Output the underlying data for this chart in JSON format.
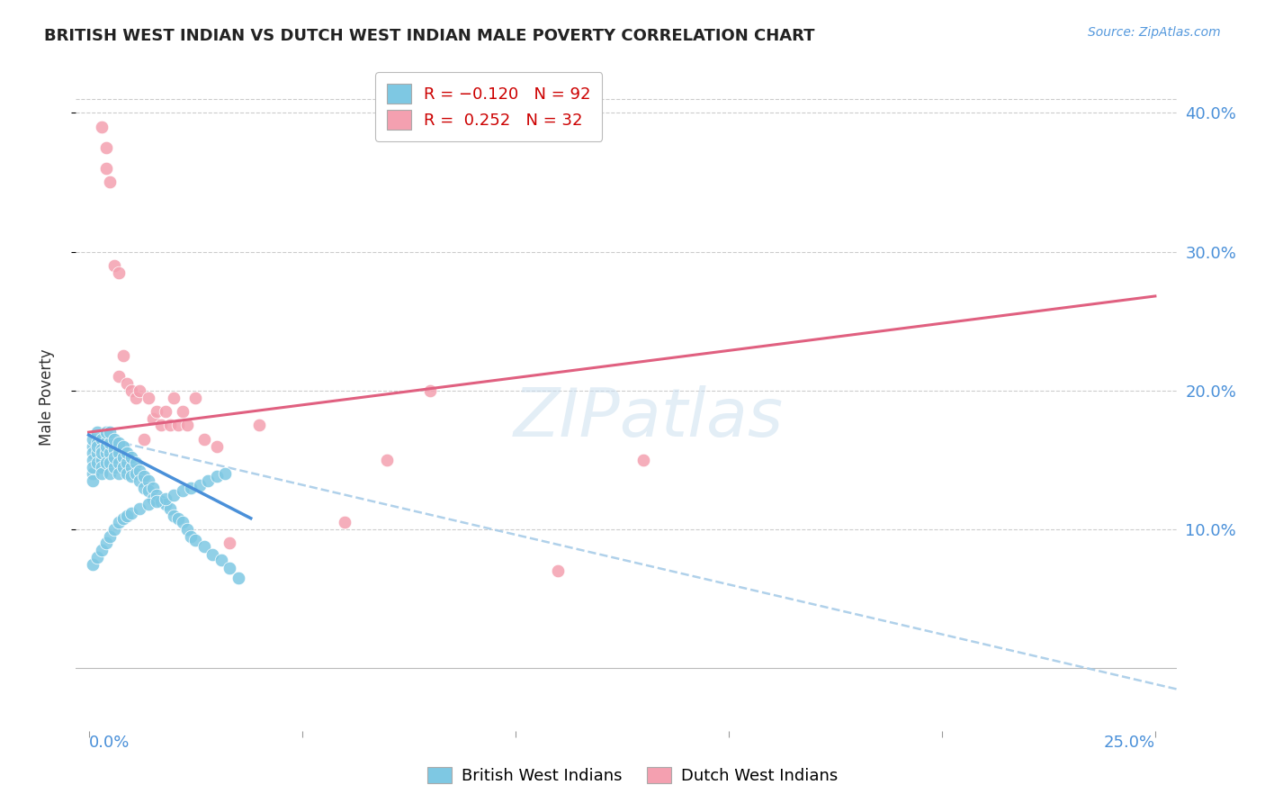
{
  "title": "BRITISH WEST INDIAN VS DUTCH WEST INDIAN MALE POVERTY CORRELATION CHART",
  "source": "Source: ZipAtlas.com",
  "ylabel": "Male Poverty",
  "color_british": "#7ec8e3",
  "color_dutch": "#f4a0b0",
  "color_line_british": "#4a90d9",
  "color_line_dutch": "#e06080",
  "color_dashed": "#a8cce8",
  "watermark": "ZIPatlas",
  "xlim": [
    -0.003,
    0.255
  ],
  "ylim": [
    -0.045,
    0.435
  ],
  "british_x": [
    0.001,
    0.001,
    0.001,
    0.001,
    0.001,
    0.001,
    0.001,
    0.002,
    0.002,
    0.002,
    0.002,
    0.002,
    0.003,
    0.003,
    0.003,
    0.003,
    0.003,
    0.003,
    0.004,
    0.004,
    0.004,
    0.004,
    0.004,
    0.005,
    0.005,
    0.005,
    0.005,
    0.005,
    0.006,
    0.006,
    0.006,
    0.006,
    0.007,
    0.007,
    0.007,
    0.007,
    0.008,
    0.008,
    0.008,
    0.009,
    0.009,
    0.009,
    0.01,
    0.01,
    0.01,
    0.011,
    0.011,
    0.012,
    0.012,
    0.013,
    0.013,
    0.014,
    0.014,
    0.015,
    0.015,
    0.016,
    0.017,
    0.018,
    0.019,
    0.02,
    0.021,
    0.022,
    0.023,
    0.024,
    0.025,
    0.027,
    0.029,
    0.031,
    0.033,
    0.035,
    0.001,
    0.002,
    0.003,
    0.004,
    0.005,
    0.006,
    0.007,
    0.008,
    0.009,
    0.01,
    0.012,
    0.014,
    0.016,
    0.018,
    0.02,
    0.022,
    0.024,
    0.026,
    0.028,
    0.03,
    0.032
  ],
  "british_y": [
    0.16,
    0.165,
    0.155,
    0.15,
    0.14,
    0.135,
    0.145,
    0.162,
    0.155,
    0.148,
    0.17,
    0.16,
    0.165,
    0.158,
    0.15,
    0.145,
    0.155,
    0.14,
    0.163,
    0.155,
    0.148,
    0.17,
    0.16,
    0.155,
    0.148,
    0.162,
    0.14,
    0.17,
    0.158,
    0.145,
    0.165,
    0.152,
    0.155,
    0.148,
    0.162,
    0.14,
    0.152,
    0.145,
    0.16,
    0.148,
    0.155,
    0.14,
    0.145,
    0.152,
    0.138,
    0.148,
    0.14,
    0.142,
    0.135,
    0.138,
    0.13,
    0.135,
    0.128,
    0.13,
    0.122,
    0.125,
    0.12,
    0.118,
    0.115,
    0.11,
    0.108,
    0.105,
    0.1,
    0.095,
    0.092,
    0.088,
    0.082,
    0.078,
    0.072,
    0.065,
    0.075,
    0.08,
    0.085,
    0.09,
    0.095,
    0.1,
    0.105,
    0.108,
    0.11,
    0.112,
    0.115,
    0.118,
    0.12,
    0.122,
    0.125,
    0.128,
    0.13,
    0.132,
    0.135,
    0.138,
    0.14
  ],
  "dutch_x": [
    0.003,
    0.004,
    0.004,
    0.005,
    0.006,
    0.007,
    0.007,
    0.008,
    0.009,
    0.01,
    0.011,
    0.012,
    0.013,
    0.014,
    0.015,
    0.016,
    0.017,
    0.018,
    0.019,
    0.02,
    0.021,
    0.022,
    0.023,
    0.025,
    0.027,
    0.03,
    0.033,
    0.04,
    0.08,
    0.11,
    0.13,
    0.07,
    0.06
  ],
  "dutch_y": [
    0.39,
    0.375,
    0.36,
    0.35,
    0.29,
    0.285,
    0.21,
    0.225,
    0.205,
    0.2,
    0.195,
    0.2,
    0.165,
    0.195,
    0.18,
    0.185,
    0.175,
    0.185,
    0.175,
    0.195,
    0.175,
    0.185,
    0.175,
    0.195,
    0.165,
    0.16,
    0.09,
    0.175,
    0.2,
    0.07,
    0.15,
    0.15,
    0.105
  ],
  "brit_line_x": [
    0.0,
    0.038
  ],
  "brit_line_y": [
    0.168,
    0.108
  ],
  "dutch_line_x": [
    0.0,
    0.25
  ],
  "dutch_line_y": [
    0.17,
    0.268
  ],
  "dashed_line_x": [
    0.0,
    0.255
  ],
  "dashed_line_y": [
    0.168,
    -0.015
  ],
  "ytick_vals": [
    0.1,
    0.2,
    0.3,
    0.4
  ],
  "ytick_labels": [
    "10.0%",
    "20.0%",
    "30.0%",
    "40.0%"
  ],
  "xtick_vals": [
    0.0,
    0.05,
    0.1,
    0.15,
    0.2,
    0.25
  ]
}
